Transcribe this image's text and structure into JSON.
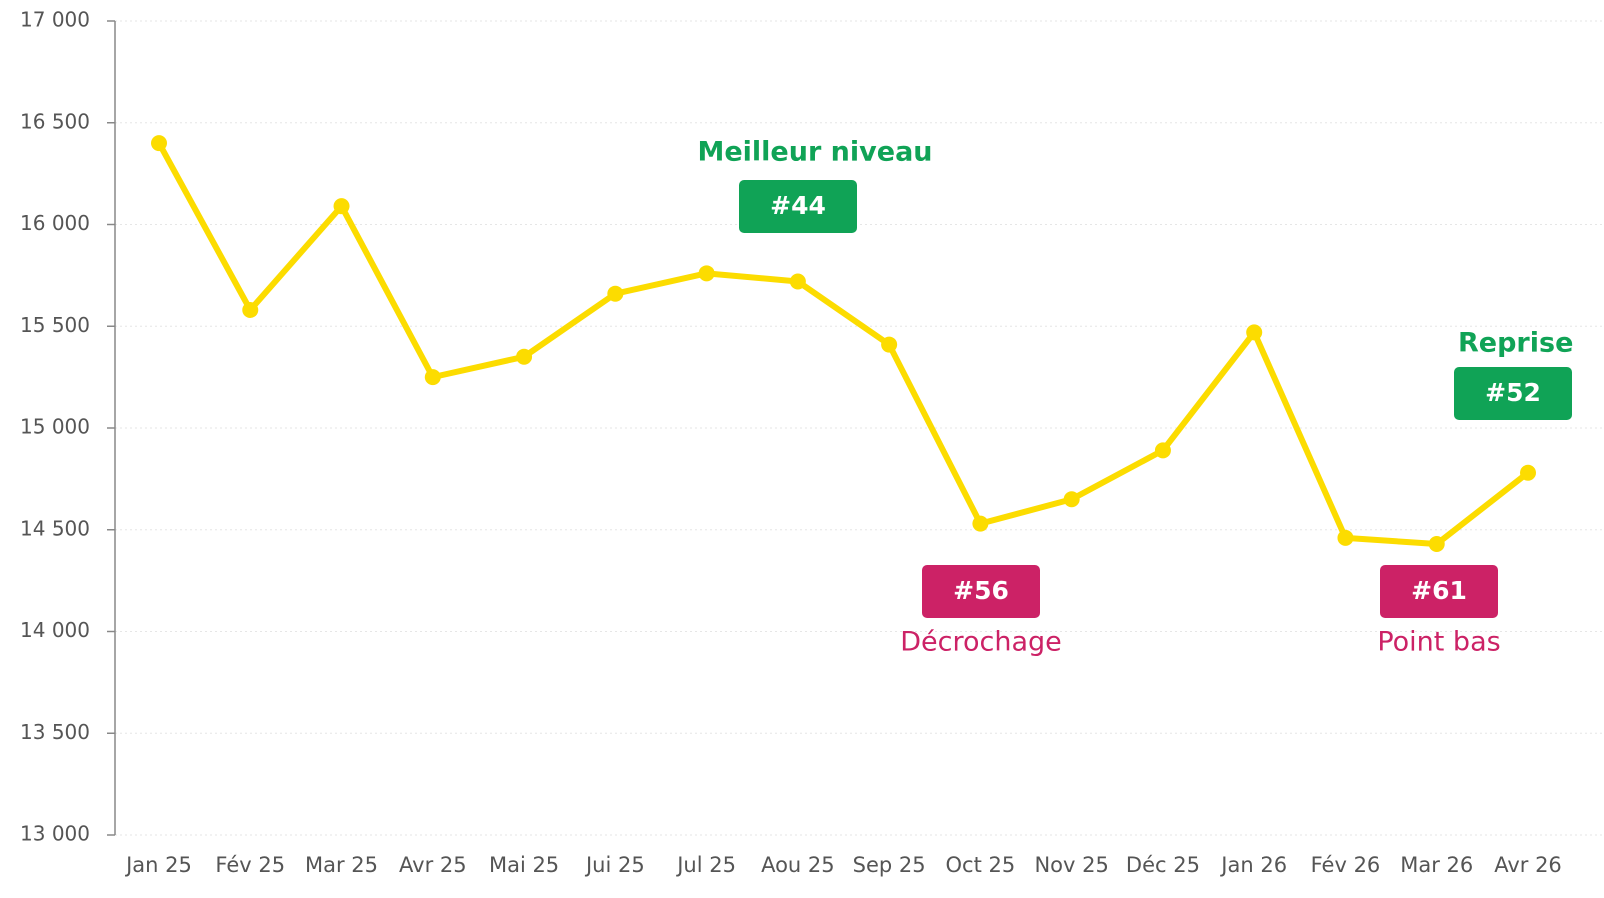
{
  "chart_data": {
    "type": "line",
    "categories": [
      "Jan 25",
      "Fév 25",
      "Mar 25",
      "Avr 25",
      "Mai 25",
      "Jui 25",
      "Jul 25",
      "Aou 25",
      "Sep 25",
      "Oct 25",
      "Nov 25",
      "Déc 25",
      "Jan 26",
      "Fév 26",
      "Mar 26",
      "Avr 26"
    ],
    "series": [
      {
        "color": "#fcdc00",
        "values": [
          16400,
          15580,
          16090,
          15250,
          15350,
          15660,
          15760,
          15720,
          15410,
          14530,
          14650,
          14890,
          15470,
          14460,
          14430,
          14780
        ]
      }
    ],
    "ylim": [
      13000,
      17000
    ],
    "yticks": [
      {
        "value": 13000,
        "label": "13 000"
      },
      {
        "value": 13500,
        "label": "13 500"
      },
      {
        "value": 14000,
        "label": "14 000"
      },
      {
        "value": 14500,
        "label": "14 500"
      },
      {
        "value": 15000,
        "label": "15 000"
      },
      {
        "value": 15500,
        "label": "15 500"
      },
      {
        "value": 16000,
        "label": "16 000"
      },
      {
        "value": 16500,
        "label": "16 500"
      },
      {
        "value": 17000,
        "label": "17 000"
      }
    ],
    "grid": true,
    "annotations": [
      {
        "label": "Meilleur niveau",
        "badge": "#44",
        "color": "#10a356"
      },
      {
        "label": "Décrochage",
        "badge": "#56",
        "color": "#cc2266"
      },
      {
        "label": "Point bas",
        "badge": "#61",
        "color": "#cc2266"
      },
      {
        "label": "Reprise",
        "badge": "#52",
        "color": "#10a356"
      }
    ]
  }
}
